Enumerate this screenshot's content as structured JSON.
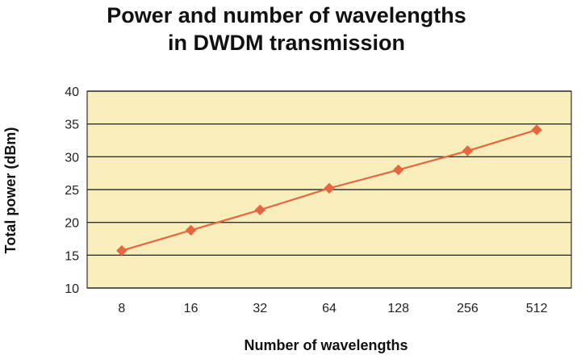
{
  "chart_data": {
    "type": "line",
    "title_lines": [
      "Power and number of wavelengths",
      "in DWDM transmission"
    ],
    "xlabel": "Number of wavelengths",
    "ylabel": "Total power (dBm)",
    "categories": [
      "8",
      "16",
      "32",
      "64",
      "128",
      "256",
      "512"
    ],
    "series": [
      {
        "name": "Total power",
        "values": [
          15.7,
          18.8,
          21.9,
          25.2,
          28.0,
          30.9,
          34.1
        ],
        "color": "#e8663f"
      }
    ],
    "ylim": [
      10,
      40
    ],
    "yticks": [
      10,
      15,
      20,
      25,
      30,
      35,
      40
    ],
    "grid": true,
    "plot_background": "#f8eebb",
    "grid_color": "#333333"
  }
}
